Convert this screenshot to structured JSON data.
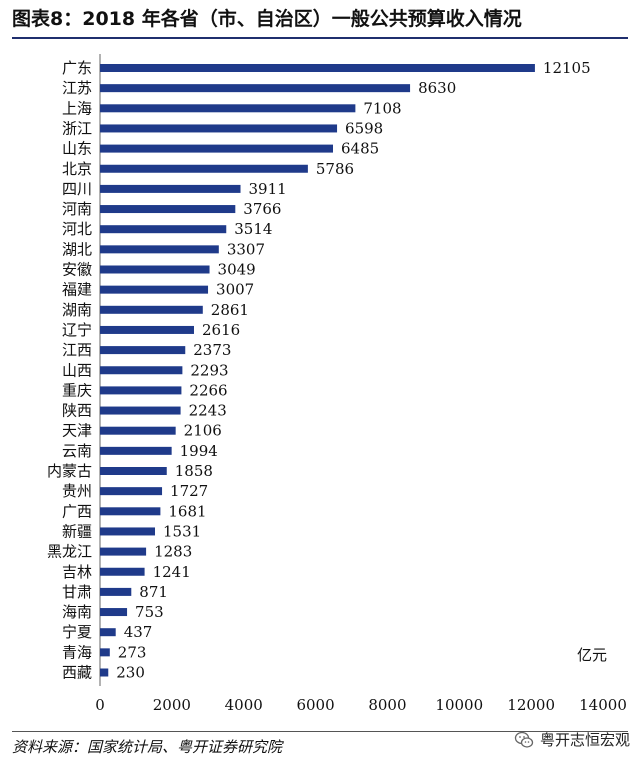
{
  "title": "图表8：2018 年各省（市、自治区）一般公共预算收入情况",
  "source": "资料来源：国家统计局、粤开证券研究院",
  "watermark": "粤开志恒宏观",
  "chart_data": {
    "type": "bar",
    "orientation": "horizontal",
    "title": "图表8：2018 年各省（市、自治区）一般公共预算收入情况",
    "unit": "亿元",
    "categories": [
      "广东",
      "江苏",
      "上海",
      "浙江",
      "山东",
      "北京",
      "四川",
      "河南",
      "河北",
      "湖北",
      "安徽",
      "福建",
      "湖南",
      "辽宁",
      "江西",
      "山西",
      "重庆",
      "陕西",
      "天津",
      "云南",
      "内蒙古",
      "贵州",
      "广西",
      "新疆",
      "黑龙江",
      "吉林",
      "甘肃",
      "海南",
      "宁夏",
      "青海",
      "西藏"
    ],
    "values": [
      12105,
      8630,
      7108,
      6598,
      6485,
      5786,
      3911,
      3766,
      3514,
      3307,
      3049,
      3007,
      2861,
      2616,
      2373,
      2293,
      2266,
      2243,
      2106,
      1994,
      1858,
      1727,
      1681,
      1531,
      1283,
      1241,
      871,
      753,
      437,
      273,
      230
    ],
    "xlim": [
      0,
      14000
    ],
    "xticks": [
      0,
      2000,
      4000,
      6000,
      8000,
      10000,
      12000,
      14000
    ],
    "bar_color": "#1f3a8a",
    "grid": false
  }
}
